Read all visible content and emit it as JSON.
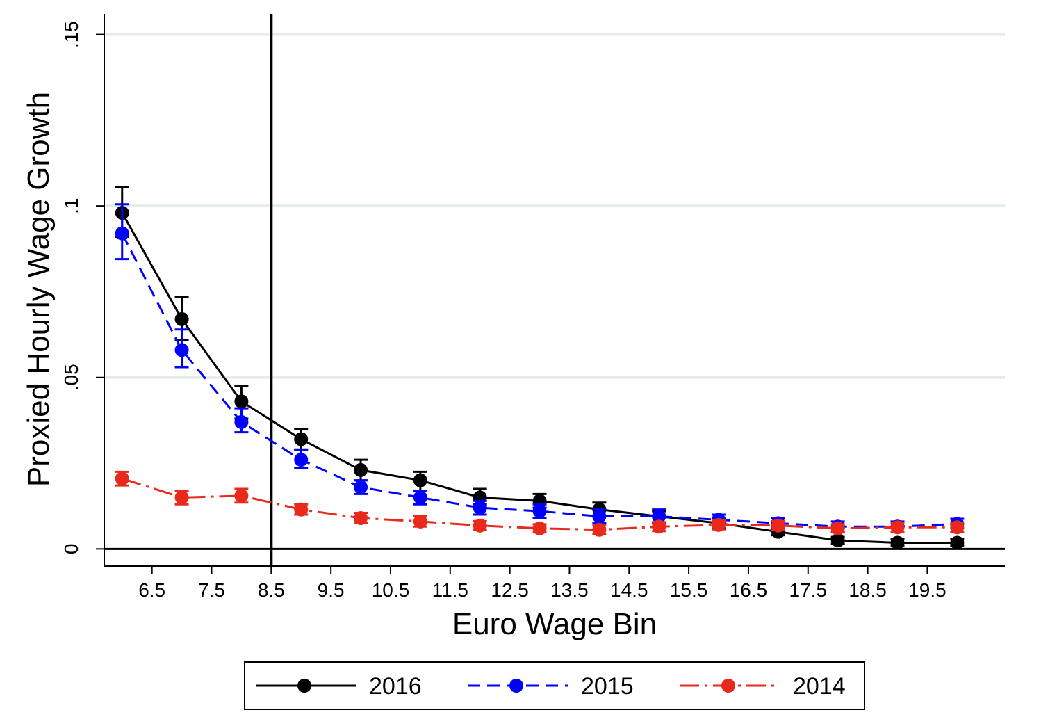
{
  "chart_data": {
    "type": "line",
    "xlabel": "Euro Wage Bin",
    "ylabel": "Proxied Hourly Wage Growth",
    "x_tick_labels": [
      "6.5",
      "7.5",
      "8.5",
      "9.5",
      "10.5",
      "11.5",
      "12.5",
      "13.5",
      "14.5",
      "15.5",
      "16.5",
      "17.5",
      "18.5",
      "19.5"
    ],
    "x_ticks": [
      6.5,
      7.5,
      8.5,
      9.5,
      10.5,
      11.5,
      12.5,
      13.5,
      14.5,
      15.5,
      16.5,
      17.5,
      18.5,
      19.5
    ],
    "y_tick_labels": [
      "0",
      ".05",
      ".1",
      ".15"
    ],
    "y_ticks": [
      0,
      0.05,
      0.1,
      0.15
    ],
    "xlim": [
      5.7,
      20.8
    ],
    "ylim": [
      -0.005,
      0.156
    ],
    "vertical_line_x": 8.5,
    "horizontal_line_y": 0,
    "grid": "horizontal at y ticks",
    "legend_position": "bottom",
    "x": [
      6,
      7,
      8,
      9,
      10,
      11,
      12,
      13,
      14,
      15,
      16,
      17,
      18,
      19,
      20
    ],
    "series": [
      {
        "name": "2016",
        "color": "#000000",
        "line_style": "solid",
        "values": [
          0.098,
          0.067,
          0.043,
          0.032,
          0.023,
          0.02,
          0.015,
          0.014,
          0.0115,
          0.0095,
          0.0075,
          0.005,
          0.0025,
          0.0018,
          0.0018
        ],
        "ci_low": [
          0.091,
          0.061,
          0.038,
          0.029,
          0.02,
          0.017,
          0.013,
          0.012,
          0.0095,
          0.0075,
          0.006,
          0.004,
          0.0015,
          0.001,
          0.001
        ],
        "ci_high": [
          0.1055,
          0.0735,
          0.0475,
          0.035,
          0.026,
          0.0225,
          0.0175,
          0.016,
          0.0135,
          0.011,
          0.009,
          0.0065,
          0.0035,
          0.0028,
          0.0028
        ]
      },
      {
        "name": "2015",
        "color": "#0000ff",
        "line_style": "dashed",
        "values": [
          0.092,
          0.058,
          0.037,
          0.026,
          0.018,
          0.015,
          0.012,
          0.011,
          0.0095,
          0.0095,
          0.0085,
          0.0075,
          0.0065,
          0.0065,
          0.0073
        ],
        "ci_low": [
          0.0845,
          0.053,
          0.034,
          0.0235,
          0.016,
          0.013,
          0.01,
          0.009,
          0.0075,
          0.0075,
          0.007,
          0.006,
          0.005,
          0.005,
          0.006
        ],
        "ci_high": [
          0.1005,
          0.064,
          0.041,
          0.029,
          0.02,
          0.017,
          0.014,
          0.013,
          0.0115,
          0.0115,
          0.01,
          0.009,
          0.008,
          0.008,
          0.0088
        ]
      },
      {
        "name": "2014",
        "color": "#e8291c",
        "line_style": "dash-dot",
        "values": [
          0.0205,
          0.015,
          0.0155,
          0.0115,
          0.009,
          0.008,
          0.0068,
          0.006,
          0.0056,
          0.0065,
          0.007,
          0.0068,
          0.006,
          0.0063,
          0.0063
        ],
        "ci_low": [
          0.0185,
          0.013,
          0.0135,
          0.01,
          0.0075,
          0.0065,
          0.0055,
          0.0048,
          0.0043,
          0.0052,
          0.0057,
          0.0055,
          0.0048,
          0.005,
          0.005
        ],
        "ci_high": [
          0.0225,
          0.017,
          0.0175,
          0.013,
          0.0105,
          0.0095,
          0.0081,
          0.0072,
          0.0069,
          0.0078,
          0.0083,
          0.0081,
          0.0072,
          0.0076,
          0.0076
        ]
      }
    ]
  }
}
